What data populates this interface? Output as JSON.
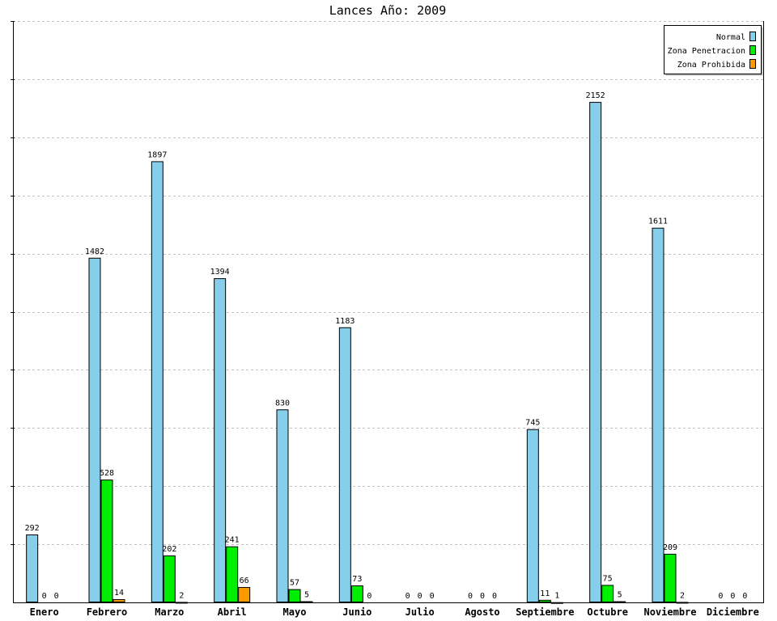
{
  "chart_data": {
    "type": "bar",
    "title": "Lances Año: 2009",
    "xlabel": "",
    "ylabel": "",
    "ylim": [
      0,
      2500
    ],
    "grid": true,
    "legend_position": "top-right",
    "categories": [
      "Enero",
      "Febrero",
      "Marzo",
      "Abril",
      "Mayo",
      "Junio",
      "Julio",
      "Agosto",
      "Septiembre",
      "Octubre",
      "Noviembre",
      "Diciembre"
    ],
    "series": [
      {
        "name": "Normal",
        "color": "#87ceeb",
        "values": [
          292,
          1482,
          1897,
          1394,
          830,
          1183,
          0,
          0,
          745,
          2152,
          1611,
          0
        ]
      },
      {
        "name": "Zona Penetracion",
        "color": "#00ee00",
        "values": [
          0,
          528,
          202,
          241,
          57,
          73,
          0,
          0,
          11,
          75,
          209,
          0
        ]
      },
      {
        "name": "Zona Prohibida",
        "color": "#ff9900",
        "values": [
          0,
          14,
          2,
          66,
          5,
          0,
          0,
          0,
          1,
          5,
          2,
          0
        ]
      }
    ]
  }
}
